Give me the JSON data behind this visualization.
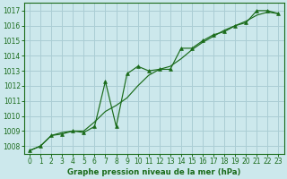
{
  "xlabel": "Graphe pression niveau de la mer (hPa)",
  "background_color": "#cce8ec",
  "grid_color": "#aacdd4",
  "line_color": "#1a6b1a",
  "marker_color": "#1a6b1a",
  "xlim_min": -0.5,
  "xlim_max": 23.5,
  "ylim_min": 1007.5,
  "ylim_max": 1017.5,
  "yticks": [
    1008,
    1009,
    1010,
    1011,
    1012,
    1013,
    1014,
    1015,
    1016,
    1017
  ],
  "xticks": [
    0,
    1,
    2,
    3,
    4,
    5,
    6,
    7,
    8,
    9,
    10,
    11,
    12,
    13,
    14,
    15,
    16,
    17,
    18,
    19,
    20,
    21,
    22,
    23
  ],
  "series1_x": [
    0,
    1,
    2,
    3,
    4,
    5,
    6,
    7,
    8,
    9,
    10,
    11,
    12,
    13,
    14,
    15,
    16,
    17,
    18,
    19,
    20,
    21,
    22,
    23
  ],
  "series1_y": [
    1007.7,
    1008.0,
    1008.7,
    1008.8,
    1009.0,
    1008.9,
    1009.3,
    1012.3,
    1009.3,
    1012.8,
    1013.3,
    1013.0,
    1013.1,
    1013.1,
    1014.5,
    1014.5,
    1015.0,
    1015.4,
    1015.6,
    1016.0,
    1016.2,
    1017.0,
    1017.0,
    1016.8
  ],
  "series2_x": [
    0,
    1,
    2,
    3,
    4,
    5,
    6,
    7,
    8,
    9,
    10,
    11,
    12,
    13,
    14,
    15,
    16,
    17,
    18,
    19,
    20,
    21,
    22,
    23
  ],
  "series2_y": [
    1007.7,
    1008.0,
    1008.7,
    1008.9,
    1009.0,
    1009.0,
    1009.6,
    1010.3,
    1010.7,
    1011.2,
    1012.0,
    1012.7,
    1013.1,
    1013.3,
    1013.8,
    1014.4,
    1014.9,
    1015.3,
    1015.7,
    1016.0,
    1016.3,
    1016.7,
    1016.9,
    1016.8
  ]
}
